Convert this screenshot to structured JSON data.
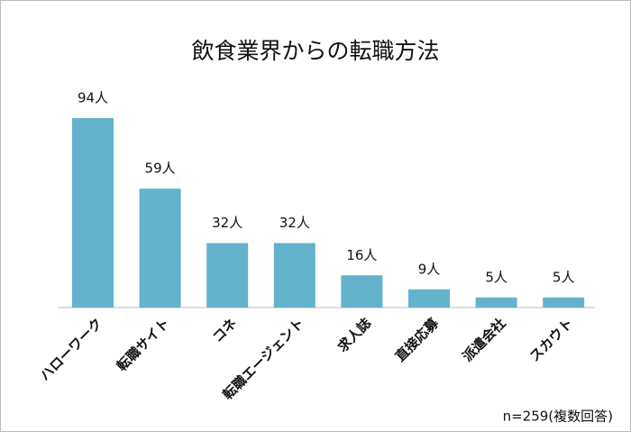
{
  "chart_data": {
    "type": "bar",
    "title": "飲食業界からの転職方法",
    "categories": [
      "ハローワーク",
      "転職サイト",
      "コネ",
      "転職エージェント",
      "求人誌",
      "直接応募",
      "派遣会社",
      "スカウト"
    ],
    "values": [
      94,
      59,
      32,
      32,
      16,
      9,
      5,
      5
    ],
    "value_labels": [
      "94人",
      "59人",
      "32人",
      "32人",
      "16人",
      "9人",
      "5人",
      "5人"
    ],
    "color": "#62b3cb",
    "annotation": "n=259(複数回答)"
  }
}
